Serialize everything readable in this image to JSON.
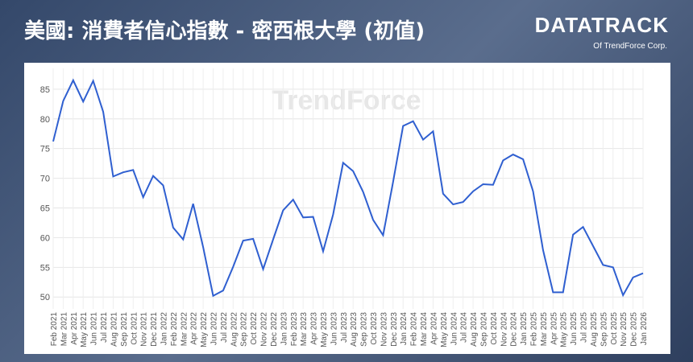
{
  "header": {
    "title": "美國: 消費者信心指數 - 密西根大學 (初值)",
    "brand": "DATATRACK",
    "brand_sub": "Of TrendForce Corp."
  },
  "chart_data": {
    "type": "line",
    "watermark": "TrendForce",
    "categories": [
      "Feb 2021",
      "Mar 2021",
      "Apr 2021",
      "May 2021",
      "Jun 2021",
      "Jul 2021",
      "Aug 2021",
      "Sep 2021",
      "Oct 2021",
      "Nov 2021",
      "Dec 2021",
      "Jan 2022",
      "Feb 2022",
      "Mar 2022",
      "Apr 2022",
      "May 2022",
      "Jun 2022",
      "Jul 2022",
      "Aug 2022",
      "Sep 2022",
      "Oct 2022",
      "Nov 2022",
      "Dec 2022",
      "Jan 2023",
      "Feb 2023",
      "Mar 2023",
      "Apr 2023",
      "May 2023",
      "Jun 2023",
      "Jul 2023",
      "Aug 2023",
      "Sep 2023",
      "Oct 2023",
      "Nov 2023",
      "Dec 2023",
      "Jan 2024",
      "Feb 2024",
      "Mar 2024",
      "Apr 2024",
      "May 2024",
      "Jun 2024",
      "Jul 2024",
      "Aug 2024",
      "Sep 2024",
      "Oct 2024",
      "Nov 2024",
      "Dec 2024",
      "Jan 2025",
      "Feb 2025",
      "Mar 2025",
      "Apr 2025",
      "May 2025",
      "Jun 2025",
      "Jul 2025",
      "Aug 2025",
      "Sep 2025",
      "Oct 2025",
      "Nov 2025",
      "Dec 2025",
      "Jan 2026"
    ],
    "series": [
      {
        "name": "消費者信心指數",
        "color": "#2f5fd0",
        "values": [
          76.2,
          83,
          86.5,
          82.9,
          86.4,
          81.2,
          70.3,
          71,
          71.4,
          66.8,
          70.4,
          68.8,
          61.7,
          59.7,
          65.7,
          58.4,
          50.2,
          51.1,
          55.1,
          59.5,
          59.8,
          54.7,
          59.7,
          64.6,
          66.4,
          63.4,
          63.5,
          57.7,
          63.9,
          72.6,
          71.2,
          67.7,
          63,
          60.4,
          69.4,
          78.8,
          79.6,
          76.5,
          77.9,
          67.4,
          65.6,
          66,
          67.8,
          69,
          68.9,
          73,
          74,
          73.2,
          67.8,
          57.9,
          50.8,
          50.8,
          60.5,
          61.8,
          58.6,
          55.4,
          55,
          50.3,
          53.3,
          54
        ]
      }
    ],
    "ylim": [
      48,
      88.5
    ],
    "yticks": [
      50,
      55,
      60,
      65,
      70,
      75,
      80,
      85
    ],
    "grid": true
  }
}
